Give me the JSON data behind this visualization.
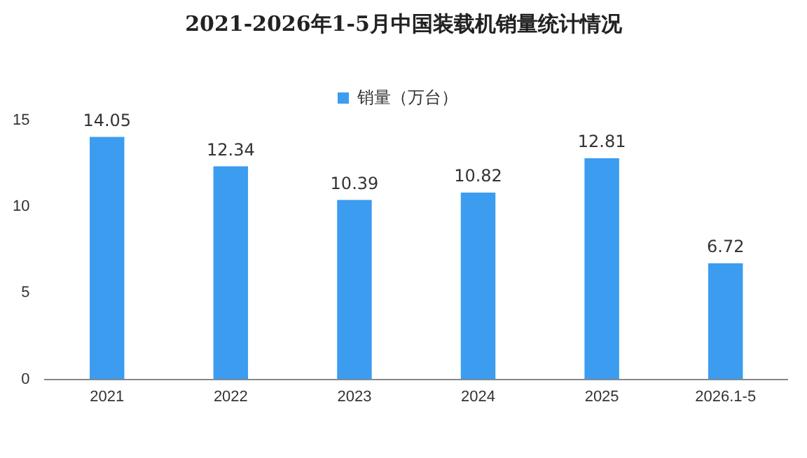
{
  "chart_data": {
    "type": "bar",
    "title": "2021-2026年1-5月中国装载机销量统计情况",
    "categories": [
      "2021",
      "2022",
      "2023",
      "2024",
      "2025",
      "2026.1-5"
    ],
    "series": [
      {
        "name": "销量（万台）",
        "color": "#3b9cf0",
        "values": [
          14.05,
          12.34,
          10.39,
          10.82,
          12.81,
          6.72
        ]
      }
    ],
    "ylim": [
      0,
      15
    ],
    "yticks": [
      0,
      5,
      10,
      15
    ],
    "grid": false,
    "legend": "top",
    "data_labels": true
  }
}
